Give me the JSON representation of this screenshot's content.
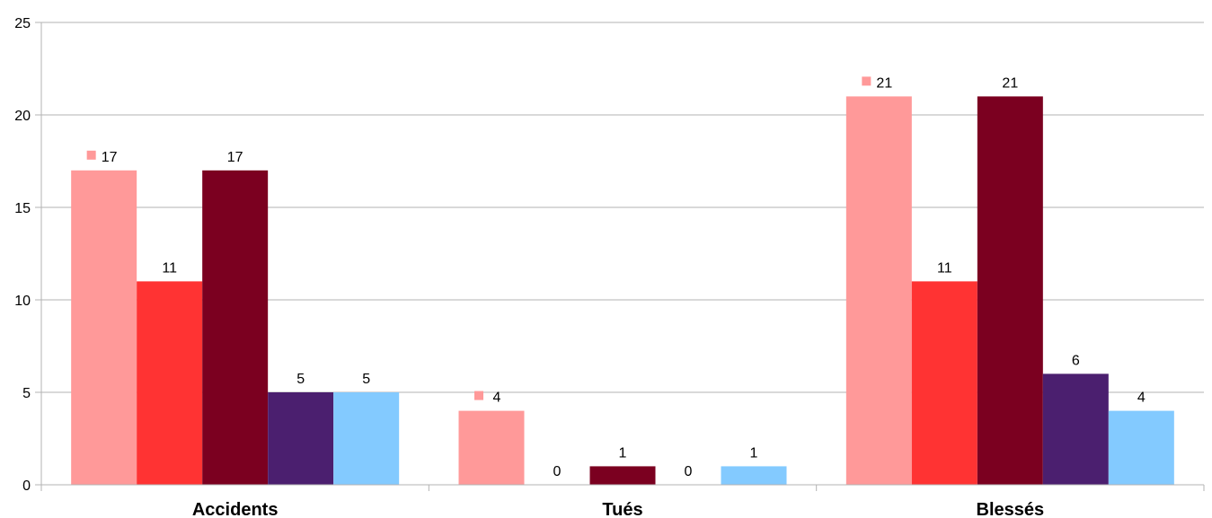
{
  "chart_data": {
    "type": "bar",
    "title": "",
    "xlabel": "",
    "ylabel": "",
    "categories": [
      "Accidents",
      "Tués",
      "Blessés"
    ],
    "ylim": [
      0,
      25
    ],
    "yticks": [
      0,
      5,
      10,
      15,
      20,
      25
    ],
    "grid": true,
    "series": [
      {
        "color": "#ff9999",
        "values": [
          17,
          4,
          21
        ],
        "legend_key_on_label": true
      },
      {
        "color": "#ff3333",
        "values": [
          11,
          0,
          11
        ]
      },
      {
        "color": "#7b0020",
        "values": [
          17,
          1,
          21
        ]
      },
      {
        "color": "#4b1f6f",
        "values": [
          5,
          0,
          6
        ]
      },
      {
        "color": "#83caff",
        "values": [
          5,
          1,
          4
        ]
      }
    ]
  }
}
